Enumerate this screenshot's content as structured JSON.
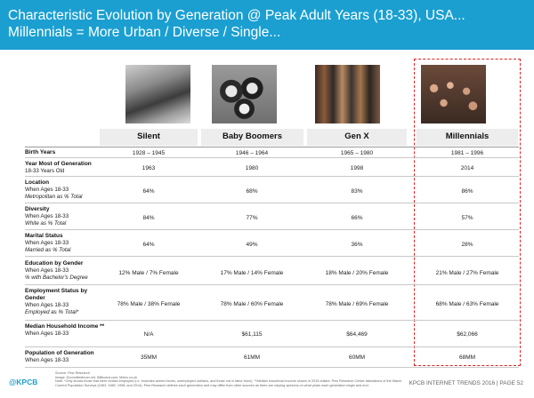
{
  "header": {
    "title_line1": "Characteristic Evolution by Generation @ Peak Adult Years (18-33), USA...",
    "title_line2": "Millennials = More Urban / Diverse / Single..."
  },
  "columns": [
    "Silent",
    "Baby Boomers",
    "Gen X",
    "Millennials"
  ],
  "rows": [
    {
      "l1": "Birth Years",
      "l2": "",
      "l3": "",
      "values": [
        "1928 – 1945",
        "1946 – 1964",
        "1965 – 1980",
        "1981 – 1996"
      ]
    },
    {
      "l1": "Year Most of Generation",
      "l2": "18-33 Years Old",
      "l3": "",
      "values": [
        "1963",
        "1980",
        "1998",
        "2014"
      ]
    },
    {
      "l1": "Location",
      "l2": "When Ages 18-33",
      "l3": "Metropolitan as % Total",
      "values": [
        "64%",
        "68%",
        "83%",
        "86%"
      ]
    },
    {
      "l1": "Diversity",
      "l2": "When Ages 18-33",
      "l3": "White as % Total",
      "values": [
        "84%",
        "77%",
        "66%",
        "57%"
      ]
    },
    {
      "l1": "Marital Status",
      "l2": "When Ages 18-33",
      "l3": "Married as % Total",
      "values": [
        "64%",
        "49%",
        "36%",
        "28%"
      ]
    },
    {
      "l1": "Education by Gender",
      "l2": "When Ages 18-33",
      "l3": "% with Bachelor's Degree",
      "values": [
        "12% Male / 7% Female",
        "17% Male / 14% Female",
        "18% Male / 20% Female",
        "21% Male / 27% Female"
      ]
    },
    {
      "l1": "Employment Status by Gender",
      "l2": "When Ages 18-33",
      "l3": "Employed as % Total*",
      "values": [
        "78% Male / 38% Female",
        "78% Male / 60% Female",
        "78% Male / 69% Female",
        "68% Male / 63% Female"
      ]
    },
    {
      "l1": "Median Household Income **",
      "l2": "When Ages 18-33",
      "l3": "",
      "values": [
        "N/A",
        "$61,115",
        "$64,469",
        "$62,066"
      ]
    },
    {
      "l1": "Population of Generation",
      "l2": "When Ages 18-33",
      "l3": "",
      "values": [
        "35MM",
        "61MM",
        "60MM",
        "68MM"
      ]
    }
  ],
  "footer": {
    "logo": "@KPCB",
    "source": "Source: Pew Research",
    "image_credit": "Image: Doonvilledinner.net, Billboard.com, Metro.co.uk",
    "note": "Note: *Only shows those that were civilian employed (i.e. excludes armed forces, unemployed civilians, and those not in labor force). **Median household income shown in 2015 dollars. Pew Research Center tabulations of the March Current Population Surveys (1963, 1980, 1998, and 2014). Pew Research defines each generation and may differ from other sources as there are varying opinions on what years each generation begin and end.",
    "right_label": "KPCB INTERNET TRENDS 2016 | PAGE 52"
  }
}
